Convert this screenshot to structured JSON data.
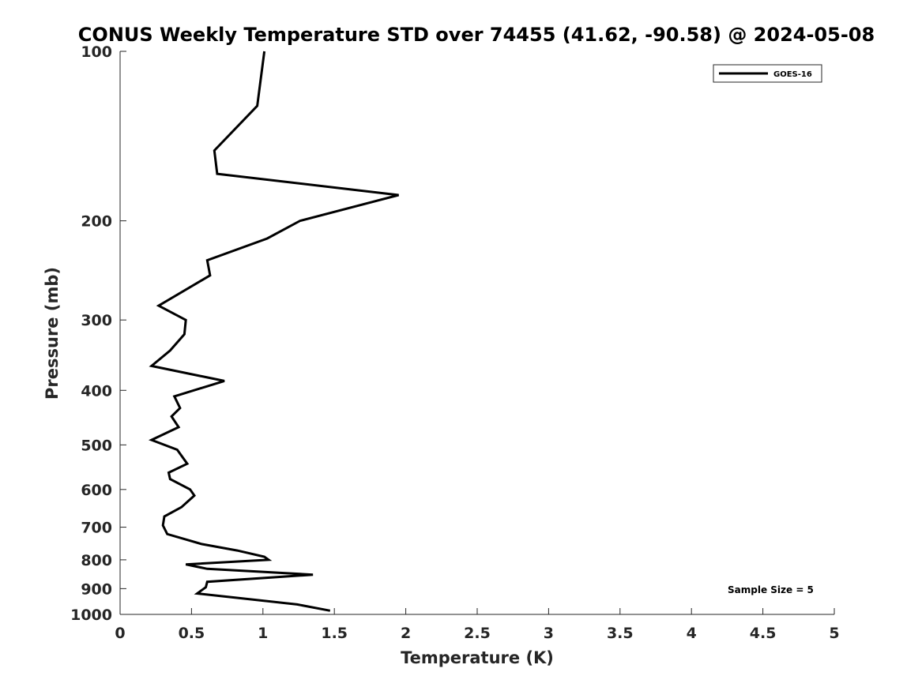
{
  "chart_data": {
    "type": "line",
    "title": "CONUS Weekly Temperature STD over 74455 (41.62, -90.58) @ 2024-05-08",
    "xlabel": "Temperature (K)",
    "ylabel": "Pressure (mb)",
    "xlim": [
      0,
      5
    ],
    "ylim": [
      100,
      1000
    ],
    "y_scale": "log",
    "y_reversed": true,
    "grid": false,
    "legend_position": "top-right",
    "xticks": [
      0,
      0.5,
      1,
      1.5,
      2,
      2.5,
      3,
      3.5,
      4,
      4.5,
      5
    ],
    "xtick_labels": [
      "0",
      "0.5",
      "1",
      "1.5",
      "2",
      "2.5",
      "3",
      "3.5",
      "4",
      "4.5",
      "5"
    ],
    "yticks": [
      100,
      200,
      300,
      400,
      500,
      600,
      700,
      800,
      900,
      1000
    ],
    "ytick_labels": [
      "100",
      "200",
      "300",
      "400",
      "500",
      "600",
      "700",
      "800",
      "900",
      "1000"
    ],
    "series": [
      {
        "name": "GOES-16",
        "color": "#000000",
        "points": [
          [
            1.01,
            100
          ],
          [
            0.96,
            125
          ],
          [
            0.66,
            150
          ],
          [
            0.68,
            165
          ],
          [
            1.95,
            180
          ],
          [
            1.26,
            200
          ],
          [
            1.03,
            215
          ],
          [
            0.61,
            235
          ],
          [
            0.63,
            250
          ],
          [
            0.27,
            283
          ],
          [
            0.46,
            300
          ],
          [
            0.45,
            318
          ],
          [
            0.35,
            340
          ],
          [
            0.22,
            362
          ],
          [
            0.73,
            385
          ],
          [
            0.38,
            410
          ],
          [
            0.42,
            430
          ],
          [
            0.36,
            445
          ],
          [
            0.41,
            465
          ],
          [
            0.22,
            490
          ],
          [
            0.4,
            510
          ],
          [
            0.47,
            540
          ],
          [
            0.34,
            560
          ],
          [
            0.35,
            575
          ],
          [
            0.49,
            600
          ],
          [
            0.52,
            615
          ],
          [
            0.43,
            645
          ],
          [
            0.31,
            670
          ],
          [
            0.3,
            695
          ],
          [
            0.33,
            720
          ],
          [
            0.57,
            750
          ],
          [
            0.82,
            770
          ],
          [
            1.01,
            790
          ],
          [
            1.04,
            800
          ],
          [
            0.46,
            815
          ],
          [
            0.61,
            830
          ],
          [
            1.35,
            850
          ],
          [
            0.61,
            875
          ],
          [
            0.6,
            895
          ],
          [
            0.54,
            918
          ],
          [
            0.83,
            935
          ],
          [
            1.24,
            960
          ],
          [
            1.47,
            985
          ]
        ]
      }
    ],
    "annotations": [
      "Sample Size = 5"
    ]
  }
}
